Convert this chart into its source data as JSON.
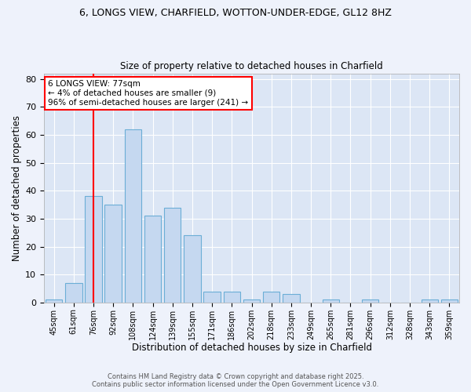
{
  "title1": "6, LONGS VIEW, CHARFIELD, WOTTON-UNDER-EDGE, GL12 8HZ",
  "title2": "Size of property relative to detached houses in Charfield",
  "xlabel": "Distribution of detached houses by size in Charfield",
  "ylabel": "Number of detached properties",
  "categories": [
    "45sqm",
    "61sqm",
    "76sqm",
    "92sqm",
    "108sqm",
    "124sqm",
    "139sqm",
    "155sqm",
    "171sqm",
    "186sqm",
    "202sqm",
    "218sqm",
    "233sqm",
    "249sqm",
    "265sqm",
    "281sqm",
    "296sqm",
    "312sqm",
    "328sqm",
    "343sqm",
    "359sqm"
  ],
  "values": [
    1,
    7,
    38,
    35,
    62,
    31,
    34,
    24,
    4,
    4,
    1,
    4,
    3,
    0,
    1,
    0,
    1,
    0,
    0,
    1,
    1
  ],
  "bar_color": "#c5d8f0",
  "bar_edge_color": "#6baed6",
  "ylim": [
    0,
    82
  ],
  "yticks": [
    0,
    10,
    20,
    30,
    40,
    50,
    60,
    70,
    80
  ],
  "property_line_index": 2,
  "property_line_color": "red",
  "annotation_text": "6 LONGS VIEW: 77sqm\n← 4% of detached houses are smaller (9)\n96% of semi-detached houses are larger (241) →",
  "footer1": "Contains HM Land Registry data © Crown copyright and database right 2025.",
  "footer2": "Contains public sector information licensed under the Open Government Licence v3.0.",
  "bg_color": "#eef2fb",
  "plot_bg_color": "#dce6f5"
}
